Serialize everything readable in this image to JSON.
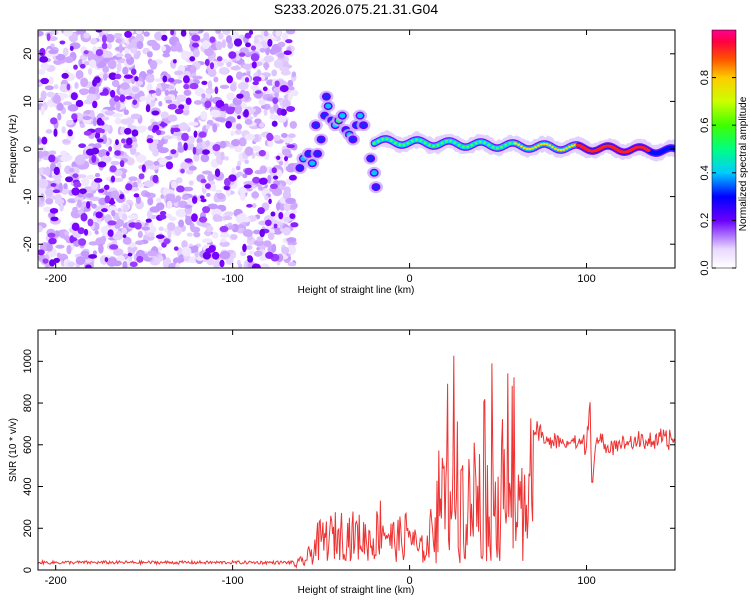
{
  "title": "S233.2026.075.21.31.G04",
  "chart_data": [
    {
      "type": "heatmap",
      "name": "spectrogram",
      "xlabel": "Height of straight line (km)",
      "ylabel": "Frequency (Hz)",
      "xlim": [
        -210,
        150
      ],
      "ylim": [
        -25,
        25
      ],
      "xticks": [
        -200,
        -100,
        0,
        100
      ],
      "yticks": [
        -20,
        -10,
        0,
        10,
        20
      ],
      "colorbar": {
        "label": "Normalized spectral amplitude",
        "range": [
          0,
          1
        ],
        "ticks": [
          0.0,
          0.2,
          0.4,
          0.6,
          0.8
        ],
        "tick_labels": [
          "0.0",
          "0.2",
          "0.4",
          "0.6",
          "0.8"
        ],
        "colors": [
          "#ffffff",
          "#8a00ff",
          "#0000ff",
          "#00ffff",
          "#00ff00",
          "#ffff00",
          "#ff8000",
          "#ff0000",
          "#ff0090"
        ]
      },
      "features": [
        {
          "label": "noise",
          "x_range": [
            -210,
            -65
          ],
          "freq_range": [
            -25,
            25
          ],
          "amplitude": "0.0-0.3"
        },
        {
          "label": "onset blobs",
          "x_range": [
            -65,
            -18
          ],
          "freq_range": [
            -10,
            12
          ],
          "amplitude": "0.2-0.4"
        },
        {
          "label": "carrier line",
          "x_range": [
            -20,
            150
          ],
          "freq_center_approx": [
            1.5,
            0
          ],
          "amplitude": "0.3-1.0"
        }
      ]
    },
    {
      "type": "line",
      "name": "snr",
      "xlabel": "Height of straight line (km)",
      "ylabel": "SNR (10 * v/v)",
      "xlim": [
        -210,
        150
      ],
      "ylim": [
        0,
        1150
      ],
      "xticks": [
        -200,
        -100,
        0,
        100
      ],
      "yticks": [
        0,
        200,
        400,
        600,
        800,
        1000
      ],
      "color": "#ee3333",
      "envelope": [
        {
          "x": -210,
          "y": 35
        },
        {
          "x": -150,
          "y": 35
        },
        {
          "x": -100,
          "y": 38
        },
        {
          "x": -65,
          "y": 40
        },
        {
          "x": -58,
          "y": 90
        },
        {
          "x": -52,
          "y": 230
        },
        {
          "x": -45,
          "y": 270
        },
        {
          "x": -38,
          "y": 300
        },
        {
          "x": -30,
          "y": 280
        },
        {
          "x": -20,
          "y": 240
        },
        {
          "x": -16,
          "y": 400
        },
        {
          "x": -10,
          "y": 250
        },
        {
          "x": -4,
          "y": 260
        },
        {
          "x": 0,
          "y": 320
        },
        {
          "x": 5,
          "y": 150
        },
        {
          "x": 10,
          "y": 200
        },
        {
          "x": 15,
          "y": 450
        },
        {
          "x": 20,
          "y": 900
        },
        {
          "x": 27,
          "y": 1100
        },
        {
          "x": 35,
          "y": 950
        },
        {
          "x": 45,
          "y": 1000
        },
        {
          "x": 55,
          "y": 1000
        },
        {
          "x": 62,
          "y": 900
        },
        {
          "x": 70,
          "y": 720
        },
        {
          "x": 80,
          "y": 660
        },
        {
          "x": 100,
          "y": 650
        },
        {
          "x": 102,
          "y": 880
        },
        {
          "x": 103,
          "y": 420
        },
        {
          "x": 105,
          "y": 650
        },
        {
          "x": 150,
          "y": 670
        }
      ]
    }
  ]
}
